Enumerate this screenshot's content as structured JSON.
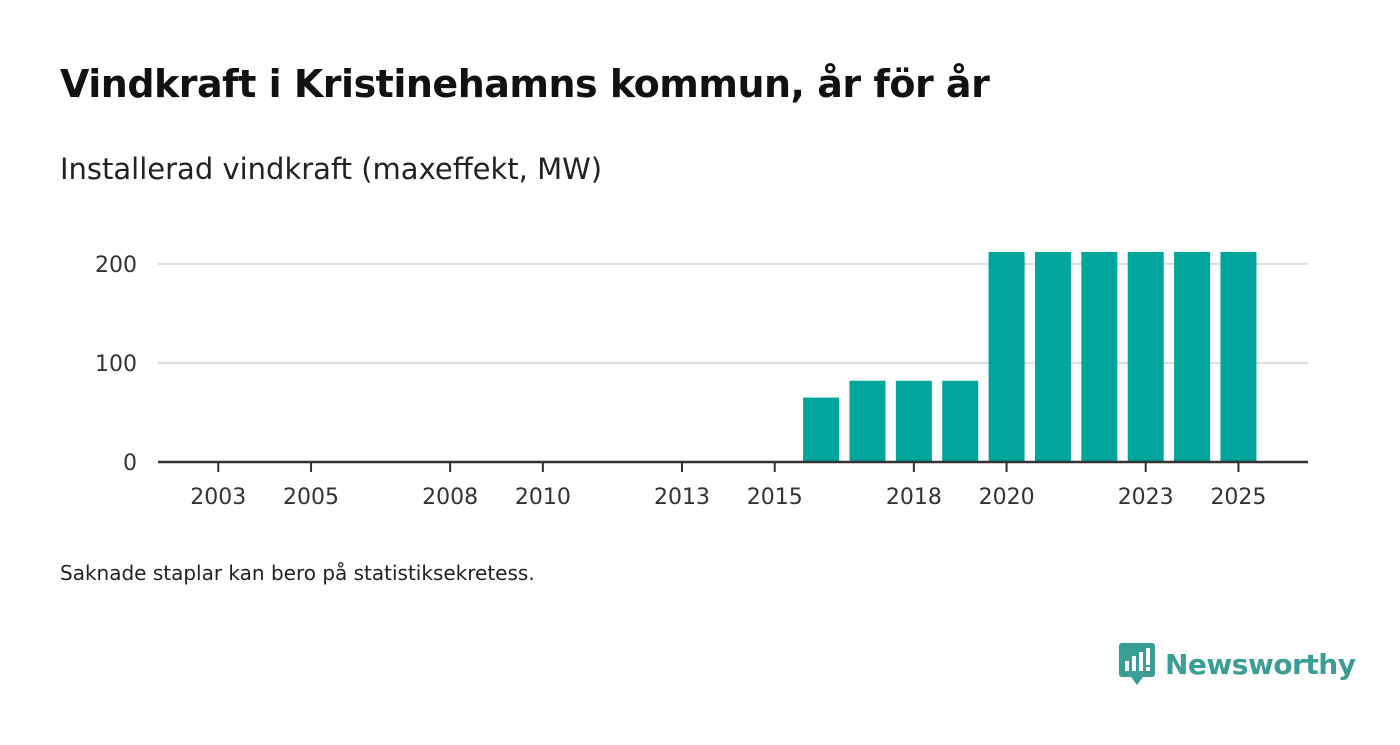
{
  "title": "Vindkraft i Kristinehamns kommun, år för år",
  "subtitle": "Installerad vindkraft (maxeffekt, MW)",
  "footnote": "Saknade staplar kan bero på statistiksekretess.",
  "brand": {
    "name": "Newsworthy",
    "icon": "newsworthy-logo-icon"
  },
  "colors": {
    "bar": "#00a59b",
    "grid": "#dddddd",
    "axis": "#333333"
  },
  "chart_data": {
    "type": "bar",
    "title": "Vindkraft i Kristinehamns kommun, år för år",
    "ylabel": "Installerad vindkraft (maxeffekt, MW)",
    "xlabel": "",
    "ylim": [
      0,
      220
    ],
    "xlim": [
      2001.7,
      2026.5
    ],
    "yticks": [
      0,
      100,
      200
    ],
    "xticks": [
      2003,
      2005,
      2008,
      2010,
      2013,
      2015,
      2018,
      2020,
      2023,
      2025
    ],
    "grid": true,
    "series": [
      {
        "name": "Installerad vindkraft",
        "x": [
          2016,
          2017,
          2018,
          2019,
          2020,
          2021,
          2022,
          2023,
          2024,
          2025
        ],
        "values": [
          65,
          82,
          82,
          82,
          212,
          212,
          212,
          212,
          212,
          212
        ]
      }
    ]
  }
}
